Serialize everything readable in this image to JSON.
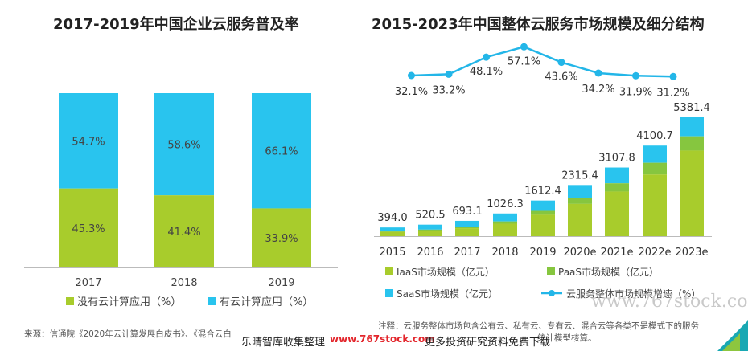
{
  "colors": {
    "green": "#a8cc2c",
    "cyan": "#29c4ee",
    "paas": "#86c63f",
    "line": "#23b6e8",
    "bluebase": "#2f9fe0"
  },
  "left": {
    "title": "2017-2019年中国企业云服务普及率",
    "legend": {
      "no_cloud": "没有云计算应用（%）",
      "cloud": "有云计算应用（%）"
    }
  },
  "right": {
    "title": "2015-2023年中国整体云服务市场规模及细分结构",
    "legend": {
      "iaas": "IaaS市场规模（亿元）",
      "paas": "PaaS市场规模（亿元）",
      "saas": "SaaS市场规模（亿元）",
      "growth": "云服务整体市场规模增速（%）"
    }
  },
  "chart_data": [
    {
      "type": "bar",
      "stacked": true,
      "categories": [
        "2017",
        "2018",
        "2019"
      ],
      "series": [
        {
          "name": "没有云计算应用（%）",
          "values": [
            45.3,
            41.4,
            33.9
          ]
        },
        {
          "name": "有云计算应用（%）",
          "values": [
            54.7,
            58.6,
            66.1
          ]
        }
      ],
      "labels": {
        "no_cloud": [
          "45.3%",
          "41.4%",
          "33.9%"
        ],
        "cloud": [
          "54.7%",
          "58.6%",
          "66.1%"
        ]
      },
      "ylim": [
        0,
        100
      ]
    },
    {
      "type": "bar",
      "stacked": true,
      "categories": [
        "2015",
        "2016",
        "2017",
        "2018",
        "2019",
        "2020e",
        "2021e",
        "2022e",
        "2023e"
      ],
      "totals": [
        394.0,
        520.5,
        693.1,
        1026.3,
        1612.4,
        2315.4,
        3107.8,
        4100.7,
        5381.4
      ],
      "total_labels": [
        "394.0",
        "520.5",
        "693.1",
        "1026.3",
        "1612.4",
        "2315.4",
        "3107.8",
        "4100.7",
        "5381.4"
      ],
      "segment_shares": {
        "iaas": [
          0.48,
          0.49,
          0.52,
          0.55,
          0.6,
          0.63,
          0.65,
          0.68,
          0.72
        ],
        "paas": [
          0.08,
          0.08,
          0.09,
          0.1,
          0.11,
          0.12,
          0.12,
          0.13,
          0.12
        ]
      },
      "growth": [
        32.1,
        33.2,
        48.1,
        57.1,
        43.6,
        34.2,
        31.9,
        31.2
      ],
      "growth_labels": [
        "32.1%",
        "33.2%",
        "48.1%",
        "57.1%",
        "43.6%",
        "34.2%",
        "31.9%",
        "31.2%"
      ],
      "ylim": [
        0,
        5600
      ]
    }
  ],
  "footer": {
    "source": "来源：信通院《2020年云计算发展白皮书》、《混合云白",
    "note_line1": "注释：云服务整体市场包含公有云、私有云、专有云、混合云等各类不是模式下的服务",
    "note_line2": "统计模型核算。",
    "wm_cn": "乐晴智库收集整理",
    "wm_url": "www.767stock.com",
    "wm_tail": "更多投资研究资料免费下载",
    "wm_site": "www.767stock.com"
  }
}
